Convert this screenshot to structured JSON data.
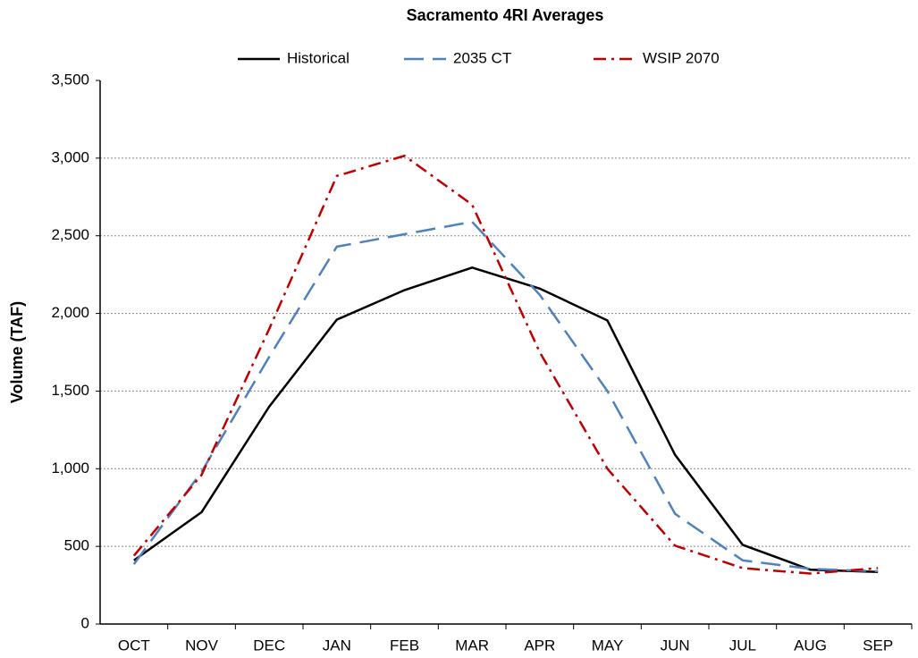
{
  "chart_data": {
    "type": "line",
    "title": "Sacramento 4RI Averages",
    "ylabel": "Volume (TAF)",
    "categories": [
      "OCT",
      "NOV",
      "DEC",
      "JAN",
      "FEB",
      "MAR",
      "APR",
      "MAY",
      "JUN",
      "JUL",
      "AUG",
      "SEP"
    ],
    "series": [
      {
        "name": "Historical",
        "color": "#000000",
        "dash": "solid",
        "values": [
          410,
          720,
          1400,
          1960,
          2150,
          2295,
          2160,
          1955,
          1090,
          510,
          350,
          335
        ]
      },
      {
        "name": "2035 CT",
        "color": "#4f81bd",
        "dash": "dashed",
        "values": [
          385,
          980,
          1720,
          2430,
          2510,
          2590,
          2120,
          1500,
          710,
          410,
          355,
          340
        ]
      },
      {
        "name": "WSIP 2070",
        "color": "#c00000",
        "dash": "dashdot",
        "values": [
          440,
          960,
          1900,
          2885,
          3015,
          2700,
          1750,
          1000,
          505,
          360,
          325,
          360
        ]
      }
    ],
    "ylim": [
      0,
      3500
    ],
    "yticks": [
      0,
      500,
      {
        "value": 1000,
        "label": "1,000"
      },
      {
        "value": 1500,
        "label": "1,500"
      },
      {
        "value": 2000,
        "label": "2,000"
      },
      {
        "value": 2500,
        "label": "2,500"
      },
      {
        "value": 3000,
        "label": "3,000"
      },
      {
        "value": 3500,
        "label": "3,500"
      }
    ],
    "grid": true,
    "legend": "top"
  }
}
